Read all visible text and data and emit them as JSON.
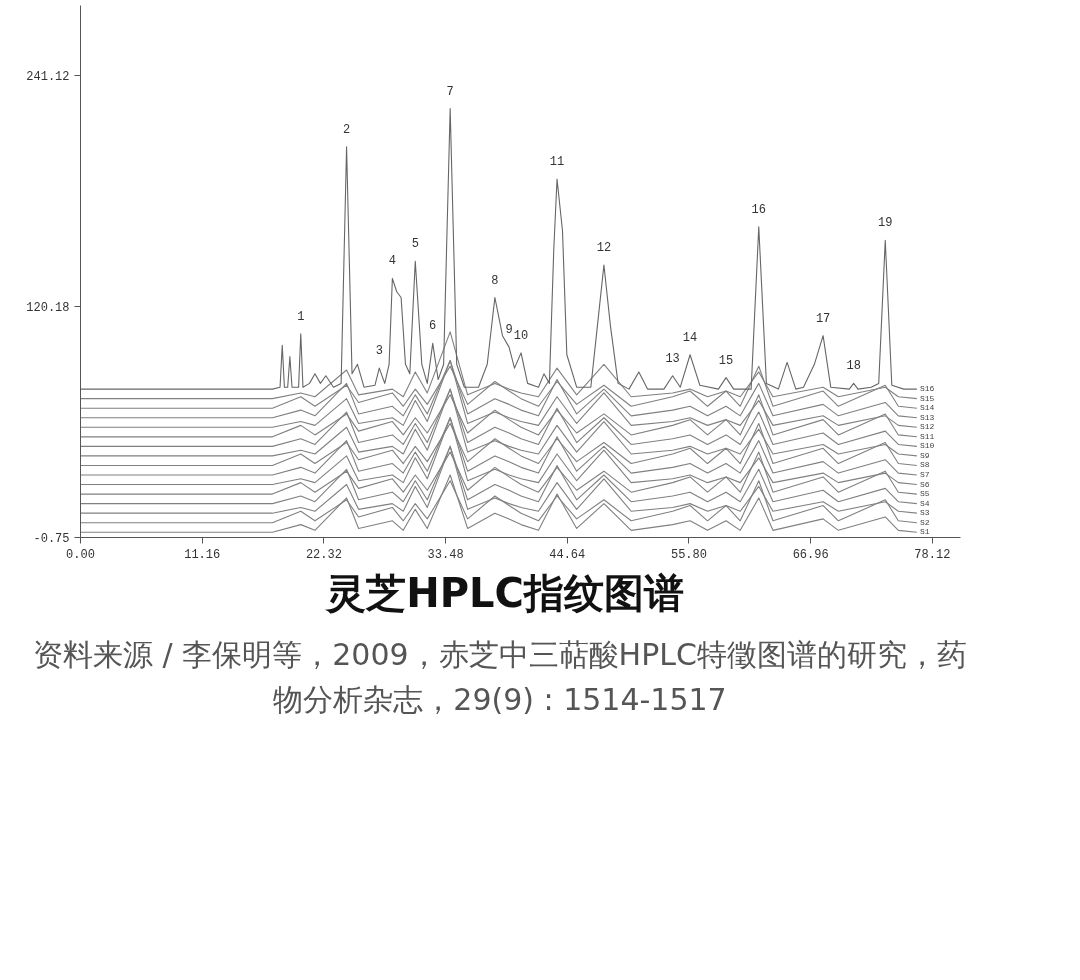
{
  "chart_data": {
    "type": "line",
    "title": "灵芝HPLC指纹图谱",
    "x": [
      0,
      17.6,
      20.2,
      21.5,
      24.4,
      25.5,
      28.6,
      29.6,
      30.7,
      31.8,
      33.9,
      35.5,
      38.0,
      39.3,
      40.4,
      42.0,
      43.7,
      45.5,
      48.0,
      50.5,
      54.3,
      55.9,
      57.5,
      59.2,
      60.5,
      62.2,
      63.5,
      68.1,
      69.5,
      73.8,
      75.0,
      76.7
    ],
    "xlim": [
      0,
      80.7
    ],
    "ylim": [
      -0.75,
      278
    ],
    "xticks": [
      {
        "value": 0,
        "label": "0.00"
      },
      {
        "value": 11.16,
        "label": "11.16"
      },
      {
        "value": 22.32,
        "label": "22.32"
      },
      {
        "value": 33.48,
        "label": "33.48"
      },
      {
        "value": 44.64,
        "label": "44.64"
      },
      {
        "value": 55.8,
        "label": "55.80"
      },
      {
        "value": 66.96,
        "label": "66.96"
      },
      {
        "value": 78.12,
        "label": "78.12"
      }
    ],
    "yticks": [
      -0.75,
      120.18,
      241.12
    ],
    "marker": "none",
    "line_style": "solid",
    "series": [
      {
        "name": "S1",
        "color": "#808080",
        "values": [
          2,
          2,
          6,
          3,
          20,
          4,
          8,
          3,
          14,
          4,
          32,
          4,
          12,
          9,
          6,
          3,
          22,
          4,
          17,
          3,
          6,
          8,
          3,
          8,
          3,
          20,
          3,
          9,
          3,
          10,
          3,
          2
        ]
      },
      {
        "name": "S2",
        "color": "#808080",
        "values": [
          7,
          7,
          13,
          8,
          19,
          10,
          15,
          8,
          17,
          9,
          29,
          9,
          21,
          16,
          12,
          8,
          21,
          9,
          19,
          8,
          13,
          16,
          8,
          16,
          8,
          29,
          8,
          16,
          8,
          19,
          8,
          7
        ]
      },
      {
        "name": "S3",
        "color": "#808080",
        "values": [
          12,
          12,
          15,
          13,
          27,
          14,
          17,
          13,
          26,
          15,
          47,
          14,
          20,
          17,
          15,
          13,
          28,
          14,
          30,
          13,
          15,
          17,
          13,
          16,
          13,
          26,
          13,
          18,
          13,
          18,
          13,
          12
        ]
      },
      {
        "name": "S4",
        "color": "#808080",
        "values": [
          17,
          17,
          21,
          18,
          35,
          19,
          23,
          18,
          29,
          19,
          47,
          19,
          27,
          24,
          21,
          18,
          37,
          19,
          32,
          18,
          21,
          23,
          18,
          23,
          18,
          35,
          18,
          24,
          18,
          25,
          18,
          17
        ]
      },
      {
        "name": "S5",
        "color": "#808080",
        "values": [
          22,
          22,
          28,
          23,
          34,
          25,
          30,
          23,
          32,
          24,
          44,
          24,
          36,
          31,
          27,
          23,
          36,
          24,
          34,
          23,
          28,
          31,
          23,
          31,
          23,
          44,
          23,
          31,
          23,
          34,
          23,
          22
        ]
      },
      {
        "name": "S6",
        "color": "#808080",
        "values": [
          27,
          27,
          30,
          28,
          42,
          29,
          32,
          28,
          41,
          30,
          62,
          29,
          35,
          32,
          30,
          28,
          43,
          29,
          45,
          28,
          30,
          32,
          28,
          31,
          28,
          41,
          28,
          33,
          28,
          33,
          28,
          27
        ]
      },
      {
        "name": "S7",
        "color": "#808080",
        "values": [
          32,
          32,
          36,
          33,
          50,
          34,
          38,
          33,
          44,
          34,
          62,
          34,
          42,
          39,
          36,
          33,
          52,
          34,
          47,
          33,
          36,
          38,
          33,
          38,
          33,
          50,
          33,
          39,
          33,
          40,
          33,
          32
        ]
      },
      {
        "name": "S8",
        "color": "#808080",
        "values": [
          37,
          37,
          43,
          38,
          49,
          40,
          45,
          38,
          47,
          39,
          59,
          39,
          51,
          46,
          42,
          38,
          51,
          39,
          49,
          38,
          43,
          46,
          38,
          46,
          38,
          59,
          38,
          46,
          38,
          49,
          38,
          37
        ]
      },
      {
        "name": "S9",
        "color": "#808080",
        "values": [
          42,
          42,
          45,
          43,
          57,
          44,
          47,
          43,
          56,
          45,
          77,
          44,
          50,
          47,
          45,
          43,
          58,
          44,
          60,
          43,
          45,
          47,
          43,
          46,
          43,
          56,
          43,
          48,
          43,
          48,
          43,
          42
        ]
      },
      {
        "name": "S10",
        "color": "#808080",
        "values": [
          47,
          47,
          51,
          48,
          65,
          49,
          53,
          48,
          59,
          49,
          77,
          49,
          57,
          54,
          51,
          48,
          67,
          49,
          62,
          48,
          51,
          53,
          48,
          53,
          48,
          65,
          48,
          54,
          48,
          55,
          48,
          47
        ]
      },
      {
        "name": "S11",
        "color": "#808080",
        "values": [
          52,
          52,
          58,
          53,
          64,
          55,
          60,
          53,
          62,
          54,
          74,
          54,
          66,
          61,
          57,
          53,
          66,
          54,
          64,
          53,
          58,
          61,
          53,
          61,
          53,
          74,
          53,
          61,
          53,
          64,
          53,
          52
        ]
      },
      {
        "name": "S12",
        "color": "#808080",
        "values": [
          57,
          57,
          60,
          58,
          72,
          59,
          62,
          58,
          71,
          60,
          92,
          59,
          65,
          62,
          60,
          58,
          73,
          59,
          75,
          58,
          60,
          62,
          58,
          61,
          58,
          71,
          58,
          63,
          58,
          63,
          58,
          57
        ]
      },
      {
        "name": "S13",
        "color": "#808080",
        "values": [
          62,
          62,
          66,
          63,
          80,
          64,
          68,
          63,
          74,
          64,
          92,
          64,
          72,
          69,
          66,
          63,
          82,
          64,
          77,
          63,
          66,
          68,
          63,
          68,
          63,
          80,
          63,
          69,
          63,
          70,
          63,
          62
        ]
      },
      {
        "name": "S14",
        "color": "#808080",
        "values": [
          67,
          67,
          73,
          68,
          79,
          70,
          75,
          68,
          77,
          69,
          89,
          69,
          81,
          76,
          72,
          68,
          81,
          69,
          79,
          68,
          73,
          76,
          68,
          76,
          68,
          89,
          68,
          76,
          68,
          79,
          68,
          67
        ]
      },
      {
        "name": "S15",
        "color": "#808080",
        "values": [
          72,
          72,
          75,
          73,
          87,
          74,
          77,
          73,
          86,
          75,
          107,
          74,
          80,
          77,
          75,
          73,
          88,
          74,
          90,
          73,
          75,
          77,
          73,
          76,
          73,
          86,
          73,
          78,
          73,
          78,
          73,
          72
        ]
      },
      {
        "name": "S16",
        "color": "#666666",
        "x": [
          0,
          17.6,
          18.3,
          18.5,
          18.7,
          19.0,
          19.2,
          19.4,
          20.0,
          20.2,
          20.4,
          21.0,
          21.5,
          22.0,
          22.5,
          23.2,
          23.9,
          24.4,
          24.9,
          25.4,
          26.0,
          27.0,
          27.4,
          27.9,
          28.3,
          28.6,
          29.0,
          29.4,
          29.8,
          30.2,
          30.7,
          31.3,
          31.8,
          32.3,
          32.8,
          33.3,
          33.9,
          34.5,
          35.2,
          36.5,
          37.3,
          38.0,
          38.7,
          39.3,
          39.8,
          40.4,
          41.0,
          42.0,
          42.5,
          43.0,
          43.4,
          43.7,
          44.2,
          44.6,
          45.5,
          46.8,
          47.4,
          48.0,
          48.6,
          49.3,
          50.3,
          51.2,
          52.0,
          53.5,
          54.3,
          55.0,
          55.9,
          56.8,
          58.5,
          59.2,
          59.9,
          61.5,
          62.2,
          62.9,
          64.0,
          64.8,
          65.6,
          66.3,
          67.3,
          68.1,
          68.8,
          70.5,
          70.9,
          71.3,
          72.5,
          73.2,
          73.8,
          74.4,
          75.5,
          76.7
        ],
        "values": [
          77,
          77,
          78,
          100,
          78,
          78,
          94,
          78,
          78,
          106,
          78,
          80,
          85,
          80,
          84,
          78,
          80,
          204,
          85,
          90,
          78,
          79,
          88,
          80,
          90,
          135,
          128,
          125,
          90,
          85,
          144,
          90,
          80,
          101,
          82,
          90,
          224,
          90,
          78,
          78,
          90,
          125,
          105,
          99,
          88,
          96,
          80,
          78,
          85,
          80,
          150,
          187,
          160,
          95,
          78,
          78,
          110,
          142,
          110,
          80,
          77,
          86,
          77,
          77,
          84,
          78,
          95,
          79,
          77,
          83,
          77,
          77,
          162,
          80,
          77,
          91,
          77,
          78,
          90,
          105,
          78,
          77,
          80,
          77,
          78,
          80,
          155,
          79,
          77,
          77
        ]
      }
    ],
    "annotations": [
      {
        "text": "1",
        "x": 20.2,
        "y": 106
      },
      {
        "text": "2",
        "x": 24.4,
        "y": 204
      },
      {
        "text": "3",
        "x": 27.4,
        "y": 88
      },
      {
        "text": "4",
        "x": 28.6,
        "y": 135
      },
      {
        "text": "5",
        "x": 30.7,
        "y": 144
      },
      {
        "text": "6",
        "x": 32.3,
        "y": 101
      },
      {
        "text": "7",
        "x": 33.9,
        "y": 224
      },
      {
        "text": "8",
        "x": 38.0,
        "y": 125
      },
      {
        "text": "9",
        "x": 39.3,
        "y": 99
      },
      {
        "text": "10",
        "x": 40.4,
        "y": 96
      },
      {
        "text": "11",
        "x": 43.7,
        "y": 187
      },
      {
        "text": "12",
        "x": 48.0,
        "y": 142
      },
      {
        "text": "13",
        "x": 54.3,
        "y": 84
      },
      {
        "text": "14",
        "x": 55.9,
        "y": 95
      },
      {
        "text": "15",
        "x": 59.2,
        "y": 83
      },
      {
        "text": "16",
        "x": 62.2,
        "y": 162
      },
      {
        "text": "17",
        "x": 68.1,
        "y": 105
      },
      {
        "text": "18",
        "x": 70.9,
        "y": 80
      },
      {
        "text": "19",
        "x": 73.8,
        "y": 155
      },
      "资料来源 / 李保明等，2009，赤芝中三萜酸HPLC特徵图谱的研究，药物分析杂志，29(9) : 1514-1517"
    ]
  }
}
